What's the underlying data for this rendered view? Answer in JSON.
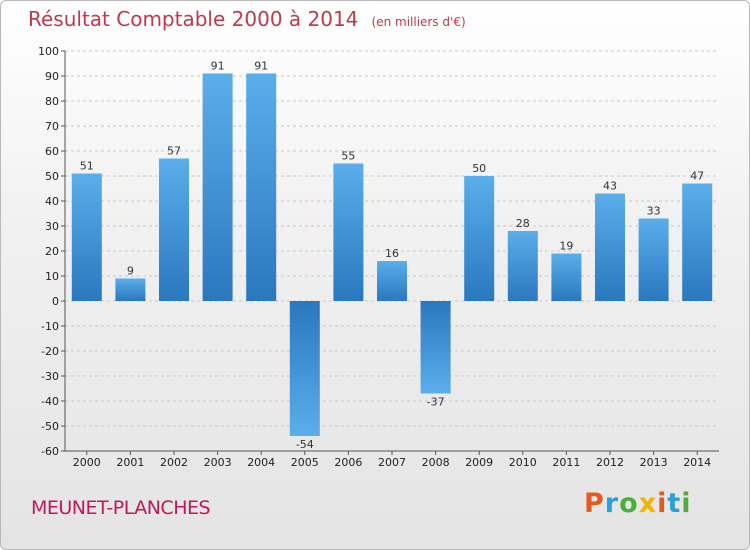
{
  "chart_data": {
    "type": "bar",
    "title": "Résultat Comptable 2000 à 2014",
    "subtitle": "(en milliers d'€)",
    "categories": [
      "2000",
      "2001",
      "2002",
      "2003",
      "2004",
      "2005",
      "2006",
      "2007",
      "2008",
      "2009",
      "2010",
      "2011",
      "2012",
      "2013",
      "2014"
    ],
    "values": [
      51,
      9,
      57,
      91,
      91,
      -54,
      55,
      16,
      -37,
      50,
      28,
      19,
      43,
      33,
      47
    ],
    "ylim": [
      -60,
      100
    ],
    "ytick_step": 10,
    "grid": "horizontal-dashed",
    "bar_color": "#3a8fd6",
    "xlabel": "",
    "ylabel": ""
  },
  "footer": {
    "town": "MEUNET-PLANCHES",
    "logo_letters": [
      "P",
      "r",
      "o",
      "x",
      "i",
      "t",
      "i"
    ],
    "logo_colors": [
      "#e8581c",
      "#2a9fd8",
      "#4caf3a",
      "#f0b400",
      "#e8581c",
      "#2a9fd8",
      "#4caf3a"
    ]
  },
  "colors": {
    "title": "#c03a4a",
    "town": "#c2185b"
  }
}
